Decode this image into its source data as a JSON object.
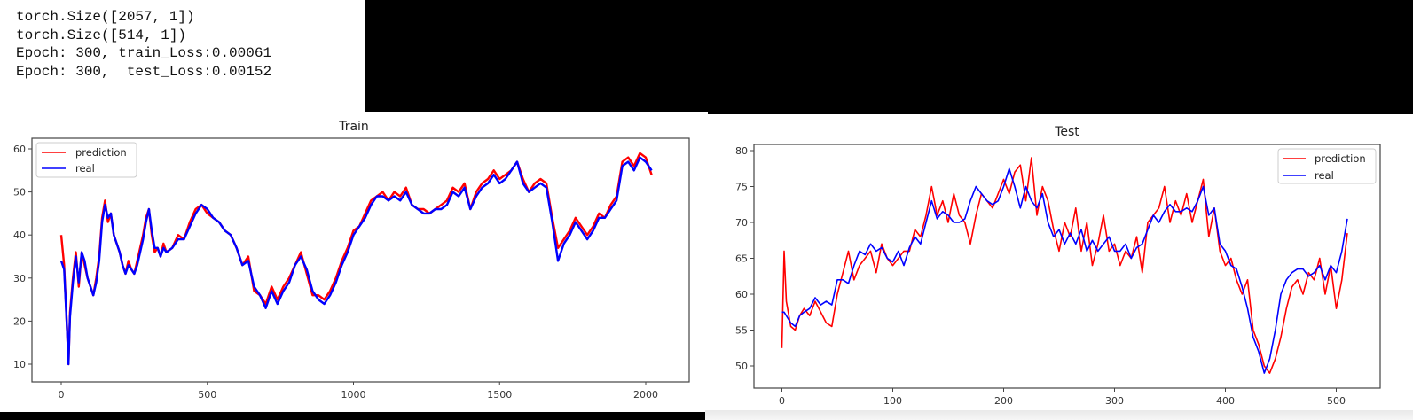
{
  "console": {
    "lines": [
      "torch.Size([2057, 1])",
      "torch.Size([514, 1])",
      "Epoch: 300, train_Loss:0.00061",
      "Epoch: 300,  test_Loss:0.00152"
    ]
  },
  "colors": {
    "prediction": "#ff0000",
    "real": "#0000ff",
    "frame": "#444444"
  },
  "chart_data": [
    {
      "type": "line",
      "title": "Train",
      "xlabel": "",
      "ylabel": "",
      "xlim": [
        -100,
        2160
      ],
      "ylim": [
        7,
        62.5
      ],
      "xticks": [
        0,
        500,
        1000,
        1500,
        2000
      ],
      "yticks": [
        10,
        20,
        30,
        40,
        50,
        60
      ],
      "legend": {
        "position": "upper left",
        "entries": [
          "prediction",
          "real"
        ]
      },
      "grid": false,
      "x": [
        0,
        10,
        20,
        25,
        30,
        40,
        50,
        60,
        70,
        80,
        90,
        100,
        110,
        120,
        130,
        140,
        150,
        160,
        170,
        180,
        190,
        200,
        210,
        220,
        230,
        240,
        250,
        260,
        270,
        280,
        290,
        300,
        310,
        320,
        330,
        340,
        350,
        360,
        380,
        400,
        420,
        440,
        460,
        480,
        500,
        520,
        540,
        560,
        580,
        600,
        620,
        640,
        660,
        680,
        700,
        720,
        740,
        760,
        780,
        800,
        820,
        840,
        860,
        880,
        900,
        920,
        940,
        960,
        980,
        1000,
        1020,
        1040,
        1060,
        1080,
        1100,
        1120,
        1140,
        1160,
        1180,
        1200,
        1220,
        1240,
        1260,
        1280,
        1300,
        1320,
        1340,
        1360,
        1380,
        1400,
        1420,
        1440,
        1460,
        1480,
        1500,
        1520,
        1540,
        1560,
        1580,
        1600,
        1620,
        1640,
        1660,
        1680,
        1700,
        1720,
        1740,
        1760,
        1780,
        1800,
        1820,
        1840,
        1860,
        1880,
        1900,
        1920,
        1940,
        1960,
        1980,
        2000,
        2020,
        2040,
        2056
      ],
      "series": [
        {
          "name": "prediction",
          "color": "#ff0000",
          "values": [
            40,
            33,
            18,
            10,
            22,
            30,
            36,
            28,
            36,
            33,
            30,
            28,
            26,
            30,
            35,
            44,
            48,
            43,
            45,
            40,
            38,
            36,
            33,
            31,
            34,
            32,
            31,
            34,
            37,
            40,
            44,
            46,
            40,
            36,
            37,
            35,
            38,
            36,
            37,
            40,
            39,
            43,
            46,
            47,
            45,
            44,
            43,
            41,
            40,
            37,
            33,
            35,
            27,
            26,
            24,
            28,
            25,
            28,
            30,
            33,
            36,
            31,
            26,
            26,
            25,
            27,
            30,
            34,
            37,
            41,
            42,
            45,
            48,
            49,
            50,
            48,
            50,
            49,
            51,
            47,
            46,
            46,
            45,
            46,
            47,
            48,
            51,
            50,
            52,
            46,
            50,
            52,
            53,
            55,
            53,
            54,
            55,
            57,
            53,
            50,
            52,
            53,
            52,
            44,
            37,
            39,
            41,
            44,
            42,
            40,
            42,
            45,
            44,
            47,
            49,
            57,
            58,
            56,
            59,
            58,
            54
          ]
        },
        {
          "name": "real",
          "color": "#0000ff",
          "values": [
            34,
            32,
            18,
            10,
            21,
            29,
            35,
            29,
            36,
            34,
            30,
            28,
            26,
            29,
            34,
            43,
            47,
            44,
            45,
            40,
            38,
            36,
            33,
            31,
            33,
            32,
            31,
            33,
            36,
            39,
            43,
            46,
            41,
            37,
            37,
            35,
            37,
            36,
            37,
            39,
            39,
            42,
            45,
            47,
            46,
            44,
            43,
            41,
            40,
            37,
            33,
            34,
            28,
            26,
            23,
            27,
            24,
            27,
            29,
            33,
            35,
            32,
            27,
            25,
            24,
            26,
            29,
            33,
            36,
            40,
            42,
            44,
            47,
            49,
            49,
            48,
            49,
            48,
            50,
            47,
            46,
            45,
            45,
            46,
            46,
            47,
            50,
            49,
            51,
            46,
            49,
            51,
            52,
            54,
            52,
            53,
            55,
            57,
            52,
            50,
            51,
            52,
            51,
            43,
            34,
            38,
            40,
            43,
            41,
            39,
            41,
            44,
            44,
            46,
            48,
            56,
            57,
            55,
            58,
            57,
            55
          ]
        }
      ]
    },
    {
      "type": "line",
      "title": "Test",
      "xlabel": "",
      "ylabel": "",
      "xlim": [
        -25,
        538
      ],
      "ylim": [
        46.8,
        81
      ],
      "xticks": [
        0,
        100,
        200,
        300,
        400,
        500
      ],
      "yticks": [
        50,
        55,
        60,
        65,
        70,
        75,
        80
      ],
      "legend": {
        "position": "upper right",
        "entries": [
          "prediction",
          "real"
        ]
      },
      "grid": false,
      "x": [
        0,
        2,
        4,
        8,
        12,
        16,
        20,
        25,
        30,
        35,
        40,
        45,
        50,
        55,
        60,
        65,
        70,
        75,
        80,
        85,
        90,
        95,
        100,
        105,
        110,
        115,
        120,
        125,
        130,
        135,
        140,
        145,
        150,
        155,
        160,
        165,
        170,
        175,
        180,
        185,
        190,
        195,
        200,
        205,
        210,
        215,
        220,
        225,
        230,
        235,
        240,
        245,
        250,
        255,
        260,
        265,
        270,
        275,
        280,
        285,
        290,
        295,
        300,
        305,
        310,
        315,
        320,
        325,
        330,
        335,
        340,
        345,
        350,
        355,
        360,
        365,
        370,
        375,
        380,
        385,
        390,
        395,
        400,
        405,
        410,
        415,
        420,
        425,
        430,
        435,
        440,
        445,
        450,
        455,
        460,
        465,
        470,
        475,
        480,
        485,
        490,
        495,
        500,
        505,
        510
      ],
      "series": [
        {
          "name": "prediction",
          "color": "#ff0000",
          "values": [
            52.5,
            66,
            59,
            55.5,
            55,
            57,
            58,
            57,
            59,
            57.5,
            56,
            55.5,
            60,
            63,
            66,
            62,
            64,
            65,
            66,
            63,
            67,
            65,
            64,
            65,
            66,
            66,
            69,
            68,
            71,
            75,
            71,
            73,
            70,
            74,
            71,
            70,
            67,
            71,
            74,
            73,
            72,
            74,
            76,
            74,
            77,
            78,
            73,
            79,
            71,
            75,
            73,
            69,
            66,
            70,
            68,
            72,
            66,
            70,
            64,
            67,
            71,
            66,
            67,
            64,
            66,
            65,
            68,
            63,
            70,
            71,
            72,
            75,
            70,
            73,
            71,
            74,
            70,
            73,
            76,
            68,
            72,
            66,
            64,
            65,
            62,
            60,
            62,
            55,
            53,
            50,
            49,
            51,
            54,
            58,
            61,
            62,
            60,
            63,
            62,
            65,
            60,
            64,
            58,
            62,
            68.5
          ]
        },
        {
          "name": "real",
          "color": "#0000ff",
          "values": [
            57.5,
            57.5,
            57,
            56,
            55.5,
            57,
            57.5,
            58,
            59.5,
            58.5,
            59,
            58.5,
            62,
            62,
            61.5,
            64,
            66,
            65.5,
            67,
            66,
            66.5,
            65,
            64.5,
            66,
            64,
            66.5,
            68,
            67,
            70,
            73,
            70.5,
            71.5,
            71,
            70,
            70,
            70.5,
            73,
            75,
            74,
            73,
            72.5,
            73,
            75,
            77.5,
            75,
            72,
            75,
            73,
            72,
            74,
            70,
            68,
            69,
            67,
            68.5,
            67,
            69,
            66,
            67.5,
            66,
            67,
            68,
            66,
            66,
            67,
            65,
            66.5,
            67,
            69,
            71,
            70,
            71.5,
            72.5,
            71.5,
            71.5,
            72,
            71.5,
            73,
            75,
            71,
            72,
            67,
            66,
            64,
            63.5,
            61,
            58,
            54,
            52,
            49,
            51,
            55,
            60,
            62,
            63,
            63.5,
            63.5,
            62.5,
            63,
            64,
            62,
            64,
            63,
            66,
            70.5
          ]
        }
      ]
    }
  ]
}
